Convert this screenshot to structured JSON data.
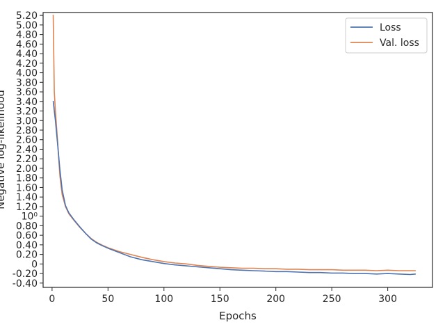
{
  "chart_data": {
    "type": "line",
    "title": "",
    "xlabel": "Epochs",
    "ylabel": "Negative log-likelihood",
    "xlim": [
      -8,
      340
    ],
    "ylim": [
      -0.49,
      5.26
    ],
    "grid": false,
    "legend_position": "top-right",
    "x_ticks": [
      0,
      50,
      100,
      150,
      200,
      250,
      300
    ],
    "x_tick_labels": [
      "0",
      "50",
      "100",
      "150",
      "200",
      "250",
      "300"
    ],
    "y_tick_labels": [
      {
        "value": -0.4,
        "label": "-0.40"
      },
      {
        "value": -0.2,
        "label": "-0.20"
      },
      {
        "value": 0,
        "label": "0"
      },
      {
        "value": 0.2,
        "label": "0.20"
      },
      {
        "value": 0.4,
        "label": "0.40"
      },
      {
        "value": 0.6,
        "label": "0.60"
      },
      {
        "value": 0.8,
        "label": "0.80"
      },
      {
        "value": 1.0,
        "label": "10⁰"
      },
      {
        "value": 1.2,
        "label": "1.20"
      },
      {
        "value": 1.4,
        "label": "1.40"
      },
      {
        "value": 1.6,
        "label": "1.60"
      },
      {
        "value": 1.8,
        "label": "1.80"
      },
      {
        "value": 2.0,
        "label": "2.00"
      },
      {
        "value": 2.2,
        "label": "2.20"
      },
      {
        "value": 2.4,
        "label": "2.40"
      },
      {
        "value": 2.6,
        "label": "2.60"
      },
      {
        "value": 2.8,
        "label": "2.80"
      },
      {
        "value": 3.0,
        "label": "3.00"
      },
      {
        "value": 3.2,
        "label": "3.20"
      },
      {
        "value": 3.4,
        "label": "3.40"
      },
      {
        "value": 3.6,
        "label": "3.60"
      },
      {
        "value": 3.8,
        "label": "3.80"
      },
      {
        "value": 4.0,
        "label": "4.00"
      },
      {
        "value": 4.2,
        "label": "4.20"
      },
      {
        "value": 4.4,
        "label": "4.40"
      },
      {
        "value": 4.6,
        "label": "4.60"
      },
      {
        "value": 4.8,
        "label": "4.80"
      },
      {
        "value": 5.0,
        "label": "5.00"
      },
      {
        "value": 5.2,
        "label": "5.20"
      }
    ],
    "series": [
      {
        "name": "Loss",
        "color": "#4c72b0",
        "x": [
          1,
          3,
          5,
          7,
          9,
          12,
          15,
          20,
          25,
          30,
          35,
          40,
          45,
          50,
          60,
          70,
          80,
          90,
          100,
          110,
          120,
          130,
          140,
          150,
          160,
          170,
          180,
          190,
          200,
          210,
          220,
          230,
          240,
          250,
          260,
          270,
          280,
          290,
          300,
          310,
          320,
          325
        ],
        "y": [
          3.41,
          3.0,
          2.5,
          1.98,
          1.55,
          1.22,
          1.07,
          0.91,
          0.77,
          0.64,
          0.52,
          0.44,
          0.38,
          0.33,
          0.24,
          0.15,
          0.09,
          0.05,
          0.01,
          -0.02,
          -0.04,
          -0.06,
          -0.08,
          -0.1,
          -0.12,
          -0.13,
          -0.14,
          -0.15,
          -0.16,
          -0.16,
          -0.17,
          -0.18,
          -0.18,
          -0.19,
          -0.19,
          -0.2,
          -0.2,
          -0.21,
          -0.2,
          -0.21,
          -0.22,
          -0.21
        ]
      },
      {
        "name": "Val. loss",
        "color": "#dd8452",
        "x": [
          1,
          2,
          3,
          5,
          7,
          9,
          12,
          15,
          20,
          25,
          30,
          35,
          40,
          45,
          50,
          60,
          70,
          80,
          90,
          100,
          110,
          120,
          130,
          140,
          150,
          160,
          170,
          180,
          190,
          200,
          210,
          220,
          230,
          240,
          250,
          260,
          270,
          280,
          290,
          300,
          310,
          320,
          325
        ],
        "y": [
          5.21,
          3.6,
          3.2,
          2.55,
          1.85,
          1.45,
          1.2,
          1.05,
          0.9,
          0.76,
          0.64,
          0.53,
          0.45,
          0.39,
          0.34,
          0.26,
          0.2,
          0.14,
          0.09,
          0.05,
          0.02,
          0.0,
          -0.03,
          -0.05,
          -0.07,
          -0.08,
          -0.09,
          -0.09,
          -0.1,
          -0.1,
          -0.11,
          -0.11,
          -0.12,
          -0.12,
          -0.12,
          -0.13,
          -0.13,
          -0.13,
          -0.14,
          -0.13,
          -0.14,
          -0.14,
          -0.14
        ]
      }
    ]
  }
}
